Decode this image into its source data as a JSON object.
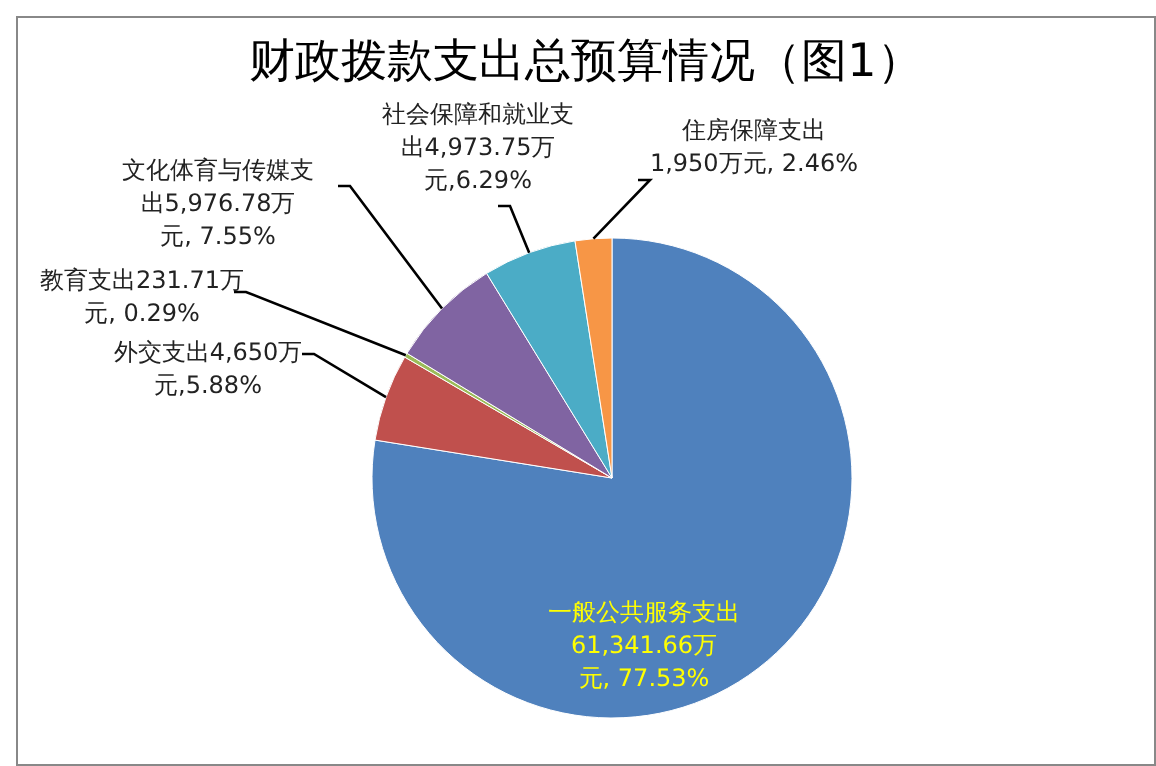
{
  "chart_data": {
    "type": "pie",
    "title": "财政拨款支出总预算情况（图1）",
    "categories": [
      "一般公共服务支出",
      "外交支出",
      "教育支出",
      "文化体育与传媒支出",
      "社会保障和就业支出",
      "住房保障支出"
    ],
    "values": [
      61341.66,
      4650,
      231.71,
      5976.78,
      4973.75,
      1950
    ],
    "value_labels": [
      "61,341.66万元, 77.53%",
      "4,650万元,5.88%",
      "231.71万元, 0.29%",
      "5,976.78万元, 7.55%",
      "4,973.75万元,6.29%",
      "1,950万元, 2.46%"
    ],
    "colors": [
      "#4f81bd",
      "#c0504d",
      "#9bbb59",
      "#8064a2",
      "#4bacc6",
      "#f79646"
    ],
    "legend": false
  }
}
